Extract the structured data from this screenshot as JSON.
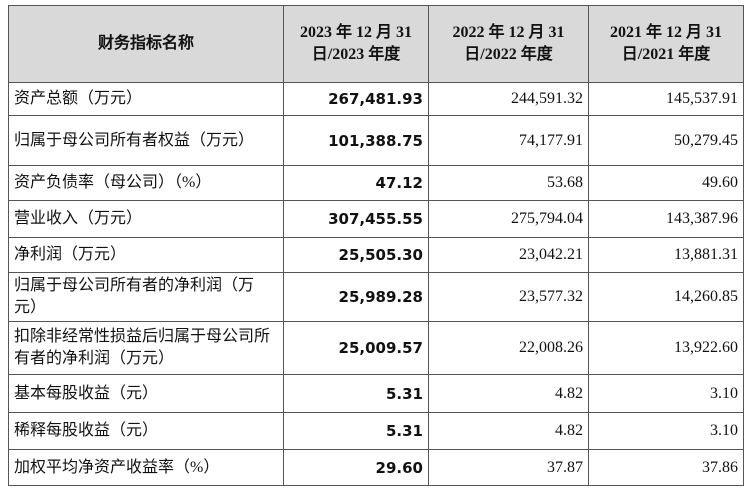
{
  "table": {
    "header": [
      "财务指标名称",
      "2023 年 12 月 31 日/2023 年度",
      "2022 年 12 月 31 日/2022 年度",
      "2021 年 12 月 31 日/2021 年度"
    ],
    "rows": [
      [
        "资产总额（万元）",
        "267,481.93",
        "244,591.32",
        "145,537.91"
      ],
      [
        "归属于母公司所有者权益（万元）",
        "101,388.75",
        "74,177.91",
        "50,279.45"
      ],
      [
        "资产负债率（母公司）（%）",
        "47.12",
        "53.68",
        "49.60"
      ],
      [
        "营业收入（万元）",
        "307,455.55",
        "275,794.04",
        "143,387.96"
      ],
      [
        "净利润（万元）",
        "25,505.30",
        "23,042.21",
        "13,881.31"
      ],
      [
        "归属于母公司所有者的净利润（万元）",
        "25,989.28",
        "23,577.32",
        "14,260.85"
      ],
      [
        "扣除非经常性损益后归属于母公司所有者的净利润（万元）",
        "25,009.57",
        "22,008.26",
        "13,922.60"
      ],
      [
        "基本每股收益（元）",
        "5.31",
        "4.82",
        "3.10"
      ],
      [
        "稀释每股收益（元）",
        "5.31",
        "4.82",
        "3.10"
      ],
      [
        "加权平均净资产收益率（%）",
        "29.60",
        "37.87",
        "37.86"
      ]
    ]
  }
}
